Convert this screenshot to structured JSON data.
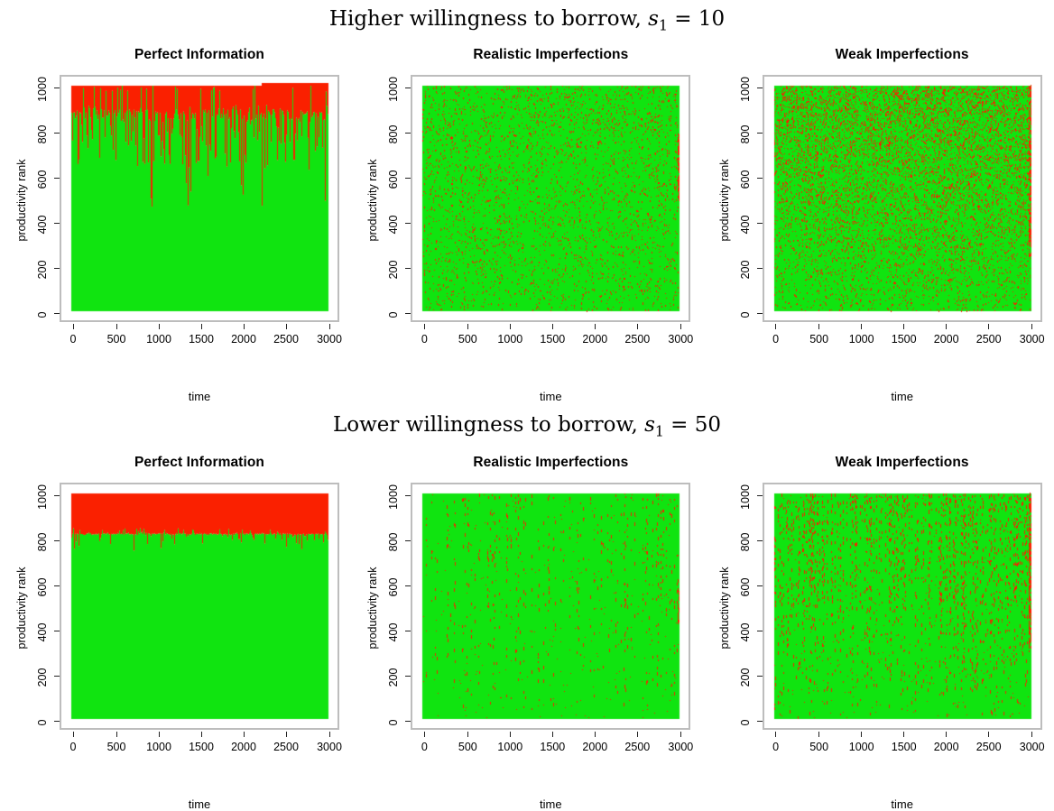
{
  "colors": {
    "green": "#10e410",
    "red": "#fa2000",
    "box_border": "#bdbdbd",
    "tick": "#222222",
    "text": "#000000"
  },
  "figure": {
    "rows": [
      {
        "title": {
          "prefix": "Higher willingness to borrow, ",
          "var": "s",
          "sub": "1",
          "suffix": " = 10"
        }
      },
      {
        "title": {
          "prefix": "Lower willingness to borrow, ",
          "var": "s",
          "sub": "1",
          "suffix": " = 50"
        }
      }
    ]
  },
  "chart_data": [
    {
      "id": "higher-perfect-information",
      "type": "area",
      "title": "Perfect Information",
      "xlabel": "time",
      "ylabel": "productivity rank",
      "x_range": [
        0,
        3000
      ],
      "y_range": [
        0,
        1000
      ],
      "x_ticks": [
        0,
        500,
        1000,
        1500,
        2000,
        2500,
        3000
      ],
      "y_ticks": [
        0,
        200,
        400,
        600,
        800,
        1000
      ],
      "series": [
        {
          "name": "low-productivity (green) region",
          "color": "green",
          "extent": "rank 0 up to jagged boundary ~870"
        },
        {
          "name": "high-productivity (red) region",
          "color": "red",
          "extent": "boundary ~870 up to 1000"
        }
      ],
      "grid": false,
      "legend": "none",
      "seed": 11,
      "pattern": {
        "kind": "boundary",
        "mean": 878,
        "jitter": 42,
        "dip_prob": 0.34,
        "dip": [
          640,
          860
        ],
        "deep_prob": 0.05,
        "deep": [
          455,
          650
        ],
        "spike_prob": 0.12,
        "spike": [
          975,
          1006
        ],
        "top": 1000,
        "step_x": 0.74,
        "step_top": 1012
      }
    },
    {
      "id": "higher-realistic-imperfections",
      "type": "area",
      "title": "Realistic Imperfections",
      "xlabel": "time",
      "ylabel": "productivity rank",
      "x_range": [
        0,
        3000
      ],
      "y_range": [
        0,
        1000
      ],
      "x_ticks": [
        0,
        500,
        1000,
        1500,
        2000,
        2500,
        3000
      ],
      "y_ticks": [
        0,
        200,
        400,
        600,
        800,
        1000
      ],
      "series": [
        {
          "name": "green field",
          "color": "green",
          "extent": "full 0-1000"
        },
        {
          "name": "red speckle noise",
          "color": "red",
          "extent": "sparse uniform speckles, extra red at right edge y 500-790"
        }
      ],
      "grid": false,
      "legend": "none",
      "seed": 22,
      "pattern": {
        "kind": "speckle",
        "density": 0.045,
        "top_bias": 0.25,
        "edge": {
          "width": 2,
          "count": 70,
          "y": [
            500,
            790
          ]
        }
      }
    },
    {
      "id": "higher-weak-imperfections",
      "type": "area",
      "title": "Weak Imperfections",
      "xlabel": "time",
      "ylabel": "productivity rank",
      "x_range": [
        0,
        3000
      ],
      "y_range": [
        0,
        1000
      ],
      "x_ticks": [
        0,
        500,
        1000,
        1500,
        2000,
        2500,
        3000
      ],
      "y_ticks": [
        0,
        200,
        400,
        600,
        800,
        1000
      ],
      "series": [
        {
          "name": "green field",
          "color": "green",
          "extent": "full 0-1000"
        },
        {
          "name": "red speckle noise",
          "color": "red",
          "extent": "dense speckles, heavier toward top and right edge"
        }
      ],
      "grid": false,
      "legend": "none",
      "seed": 33,
      "pattern": {
        "kind": "speckle",
        "density": 0.105,
        "top_bias": 0.62,
        "edge": {
          "width": 3,
          "count": 160,
          "y": [
            250,
            1005
          ]
        }
      }
    },
    {
      "id": "lower-perfect-information",
      "type": "area",
      "title": "Perfect Information",
      "xlabel": "time",
      "ylabel": "productivity rank",
      "x_range": [
        0,
        3000
      ],
      "y_range": [
        0,
        1000
      ],
      "x_ticks": [
        0,
        500,
        1000,
        1500,
        2000,
        2500,
        3000
      ],
      "y_ticks": [
        0,
        200,
        400,
        600,
        800,
        1000
      ],
      "series": [
        {
          "name": "low-productivity (green) region",
          "color": "green",
          "extent": "rank 0 to ~820, nearly flat boundary"
        },
        {
          "name": "high-productivity (red) region",
          "color": "red",
          "extent": "~820 to 1000 solid band"
        }
      ],
      "grid": false,
      "legend": "none",
      "seed": 44,
      "pattern": {
        "kind": "boundary",
        "mean": 820,
        "jitter": 6,
        "dip_prob": 0.1,
        "dip": [
          772,
          812
        ],
        "deep_prob": 0.01,
        "deep": [
          742,
          772
        ],
        "spike_prob": 0.12,
        "spike": [
          822,
          846
        ],
        "top": 1000
      }
    },
    {
      "id": "lower-realistic-imperfections",
      "type": "area",
      "title": "Realistic Imperfections",
      "xlabel": "time",
      "ylabel": "productivity rank",
      "x_range": [
        0,
        3000
      ],
      "y_range": [
        0,
        1000
      ],
      "x_ticks": [
        0,
        500,
        1000,
        1500,
        2000,
        2500,
        3000
      ],
      "y_ticks": [
        0,
        200,
        400,
        600,
        800,
        1000
      ],
      "series": [
        {
          "name": "green field",
          "color": "green",
          "extent": "full 0-1000"
        },
        {
          "name": "red vertical dashed streaks",
          "color": "red",
          "extent": "quasi-regular vertical columns, fading near bottom"
        }
      ],
      "grid": false,
      "legend": "none",
      "seed": 55,
      "pattern": {
        "kind": "streaks",
        "col_prob": 0.38,
        "dash_density": 0.1,
        "top_bias": 0.25,
        "bottom_fade": 0.35,
        "speckle": 0.004,
        "edge": {
          "width": 2,
          "count": 25,
          "y": [
            430,
            620
          ]
        }
      }
    },
    {
      "id": "lower-weak-imperfections",
      "type": "area",
      "title": "Weak Imperfections",
      "xlabel": "time",
      "ylabel": "productivity rank",
      "x_range": [
        0,
        3000
      ],
      "y_range": [
        0,
        1000
      ],
      "x_ticks": [
        0,
        500,
        1000,
        1500,
        2000,
        2500,
        3000
      ],
      "y_ticks": [
        0,
        200,
        400,
        600,
        800,
        1000
      ],
      "series": [
        {
          "name": "green field",
          "color": "green",
          "extent": "full 0-1000"
        },
        {
          "name": "red vertical dashed streaks",
          "color": "red",
          "extent": "dense columns, heavier toward top and right edge"
        }
      ],
      "grid": false,
      "legend": "none",
      "seed": 66,
      "pattern": {
        "kind": "streaks",
        "col_prob": 0.55,
        "dash_density": 0.16,
        "top_bias": 0.5,
        "bottom_fade": 0.3,
        "speckle": 0.006,
        "edge": {
          "width": 3,
          "count": 150,
          "y": [
            300,
            1005
          ]
        }
      }
    }
  ]
}
